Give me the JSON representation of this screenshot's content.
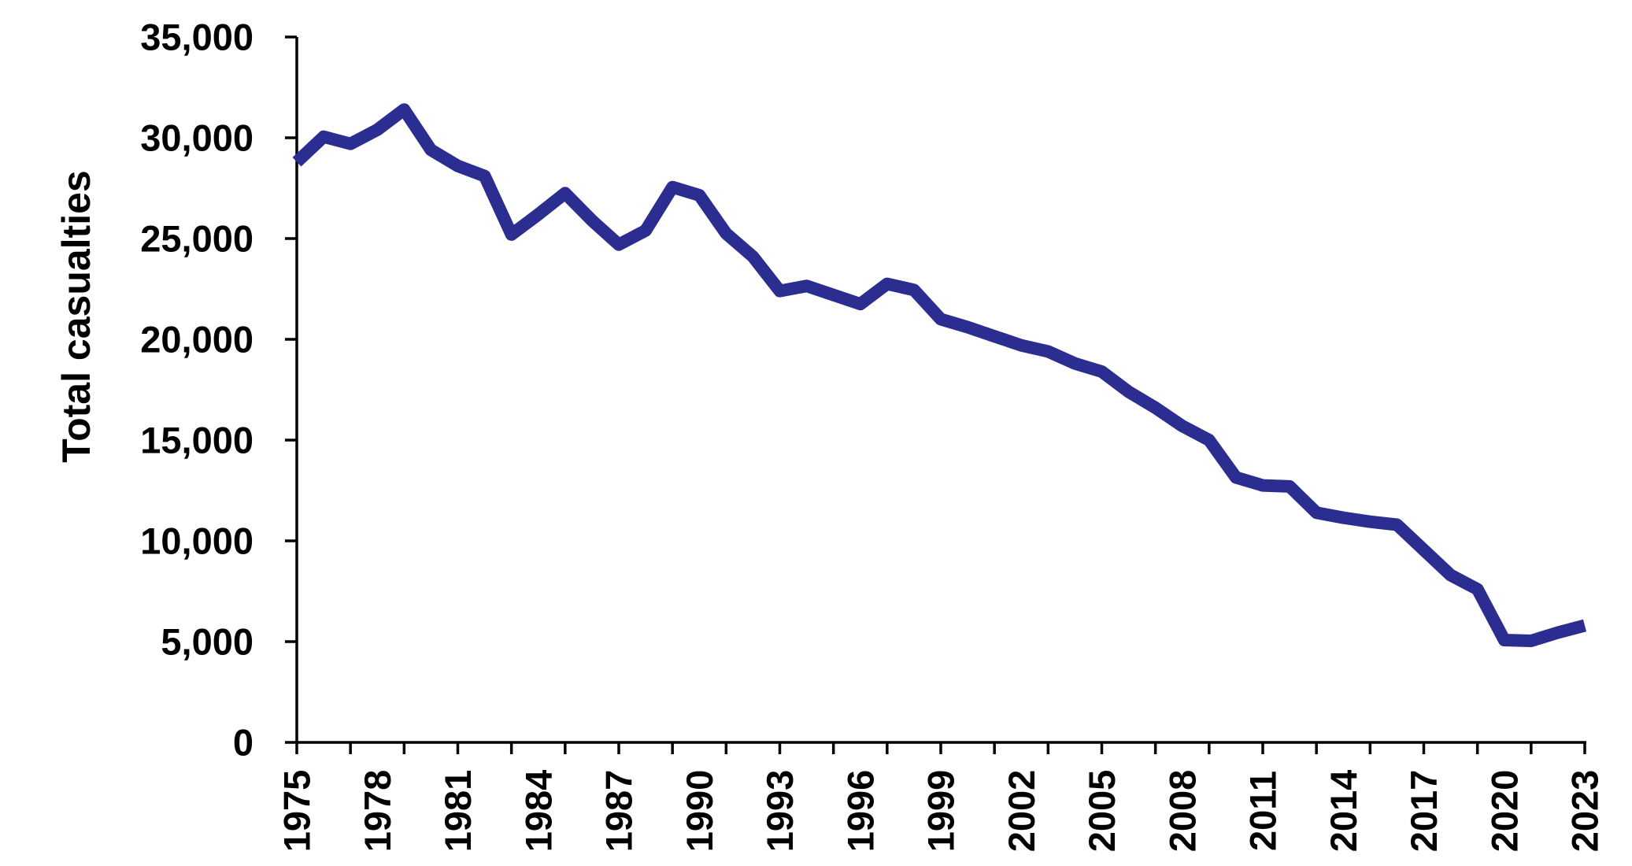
{
  "chart_data": {
    "type": "line",
    "title": "",
    "xlabel": "",
    "ylabel": "Total casualties",
    "series_name": "Total casualties",
    "x": [
      1975,
      1976,
      1977,
      1978,
      1979,
      1980,
      1981,
      1982,
      1983,
      1984,
      1985,
      1986,
      1987,
      1988,
      1989,
      1990,
      1991,
      1992,
      1993,
      1994,
      1995,
      1996,
      1997,
      1998,
      1999,
      2000,
      2001,
      2002,
      2003,
      2004,
      2005,
      2006,
      2007,
      2008,
      2009,
      2010,
      2011,
      2012,
      2013,
      2014,
      2015,
      2016,
      2017,
      2018,
      2019,
      2020,
      2021,
      2022,
      2023
    ],
    "values": [
      28800,
      30050,
      29700,
      30400,
      31400,
      29400,
      28600,
      28100,
      25200,
      26200,
      27250,
      25900,
      24700,
      25400,
      27550,
      27150,
      25250,
      24100,
      22400,
      22650,
      22200,
      21750,
      22750,
      22450,
      21000,
      20600,
      20150,
      19700,
      19400,
      18800,
      18400,
      17400,
      16600,
      15700,
      15000,
      13150,
      12750,
      12700,
      11400,
      11150,
      10950,
      10800,
      9550,
      8300,
      7600,
      5080,
      5040,
      5450,
      5800
    ],
    "xlim": [
      1975,
      2023
    ],
    "ylim": [
      0,
      35000
    ],
    "ytick_step": 5000,
    "ytick_labels": [
      "0",
      "5,000",
      "10,000",
      "15,000",
      "20,000",
      "25,000",
      "30,000",
      "35,000"
    ],
    "xtick_mark_interval_years": 2,
    "xtick_label_interval_years": 3,
    "xtick_labels": [
      "1975",
      "1978",
      "1981",
      "1984",
      "1987",
      "1990",
      "1993",
      "1996",
      "1999",
      "2002",
      "2005",
      "2008",
      "2011",
      "2014",
      "2017",
      "2020",
      "2023"
    ],
    "grid": "off",
    "legend": "none",
    "line_color": "#2B2D90",
    "axis_color": "#000000",
    "text_color": "#000000",
    "background_color": "#FFFFFF"
  }
}
